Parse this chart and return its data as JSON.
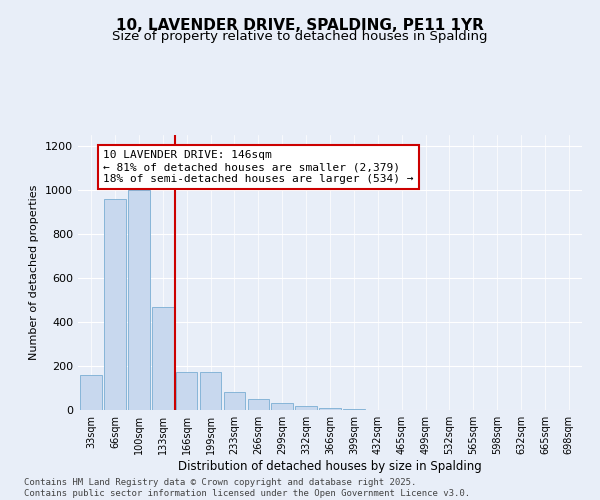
{
  "title_line1": "10, LAVENDER DRIVE, SPALDING, PE11 1YR",
  "title_line2": "Size of property relative to detached houses in Spalding",
  "xlabel": "Distribution of detached houses by size in Spalding",
  "ylabel": "Number of detached properties",
  "categories": [
    "33sqm",
    "66sqm",
    "100sqm",
    "133sqm",
    "166sqm",
    "199sqm",
    "233sqm",
    "266sqm",
    "299sqm",
    "332sqm",
    "366sqm",
    "399sqm",
    "432sqm",
    "465sqm",
    "499sqm",
    "532sqm",
    "565sqm",
    "598sqm",
    "632sqm",
    "665sqm",
    "698sqm"
  ],
  "values": [
    160,
    960,
    1000,
    470,
    175,
    175,
    80,
    50,
    30,
    20,
    10,
    5,
    0,
    0,
    0,
    0,
    0,
    0,
    0,
    0,
    0
  ],
  "bar_color": "#c8d8ee",
  "bar_edge_color": "#7aaed4",
  "annotation_box_text": "10 LAVENDER DRIVE: 146sqm\n← 81% of detached houses are smaller (2,379)\n18% of semi-detached houses are larger (534) →",
  "vline_color": "#cc0000",
  "vline_x": 3.5,
  "ylim": [
    0,
    1250
  ],
  "yticks": [
    0,
    200,
    400,
    600,
    800,
    1000,
    1200
  ],
  "footer_line1": "Contains HM Land Registry data © Crown copyright and database right 2025.",
  "footer_line2": "Contains public sector information licensed under the Open Government Licence v3.0.",
  "background_color": "#e8eef8",
  "plot_bg_color": "#e8eef8",
  "box_edge_color": "#cc0000",
  "title_fontsize": 11,
  "subtitle_fontsize": 9.5,
  "annotation_fontsize": 8,
  "footer_fontsize": 6.5,
  "ylabel_fontsize": 8,
  "xlabel_fontsize": 8.5
}
